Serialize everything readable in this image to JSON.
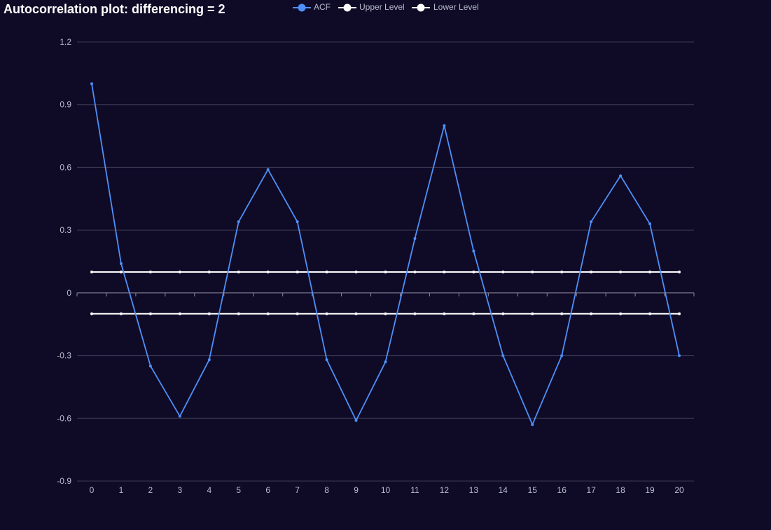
{
  "colors": {
    "background": "#0f0b27",
    "acf": "#4f8ff7",
    "upper": "#ffffff",
    "lower": "#ffffff",
    "grid": "#3c3a55",
    "axis": "#8c8ca0"
  },
  "chart_data": {
    "type": "line",
    "title": "Autocorrelation plot: differencing = 2",
    "xlabel": "",
    "ylabel": "",
    "legend_position": "top-center",
    "grid": true,
    "x": [
      0,
      1,
      2,
      3,
      4,
      5,
      6,
      7,
      8,
      9,
      10,
      11,
      12,
      13,
      14,
      15,
      16,
      17,
      18,
      19,
      20
    ],
    "xticks": [
      "0",
      "1",
      "2",
      "3",
      "4",
      "5",
      "6",
      "7",
      "8",
      "9",
      "10",
      "11",
      "12",
      "13",
      "14",
      "15",
      "16",
      "17",
      "18",
      "19",
      "20"
    ],
    "yticks": [
      "1.2",
      "0.9",
      "0.6",
      "0.3",
      "0",
      "-0.3",
      "-0.6",
      "-0.9"
    ],
    "ylim": [
      -0.9,
      1.2
    ],
    "series": [
      {
        "name": "ACF",
        "color": "#4f8ff7",
        "values": [
          1.0,
          0.14,
          -0.35,
          -0.59,
          -0.32,
          0.34,
          0.59,
          0.34,
          -0.32,
          -0.61,
          -0.33,
          0.26,
          0.8,
          0.2,
          -0.3,
          -0.63,
          -0.3,
          0.34,
          0.56,
          0.33,
          -0.3
        ]
      },
      {
        "name": "Upper Level",
        "color": "#ffffff",
        "values": [
          0.1,
          0.1,
          0.1,
          0.1,
          0.1,
          0.1,
          0.1,
          0.1,
          0.1,
          0.1,
          0.1,
          0.1,
          0.1,
          0.1,
          0.1,
          0.1,
          0.1,
          0.1,
          0.1,
          0.1,
          0.1
        ]
      },
      {
        "name": "Lower Level",
        "color": "#ffffff",
        "values": [
          -0.1,
          -0.1,
          -0.1,
          -0.1,
          -0.1,
          -0.1,
          -0.1,
          -0.1,
          -0.1,
          -0.1,
          -0.1,
          -0.1,
          -0.1,
          -0.1,
          -0.1,
          -0.1,
          -0.1,
          -0.1,
          -0.1,
          -0.1,
          -0.1
        ]
      }
    ]
  }
}
